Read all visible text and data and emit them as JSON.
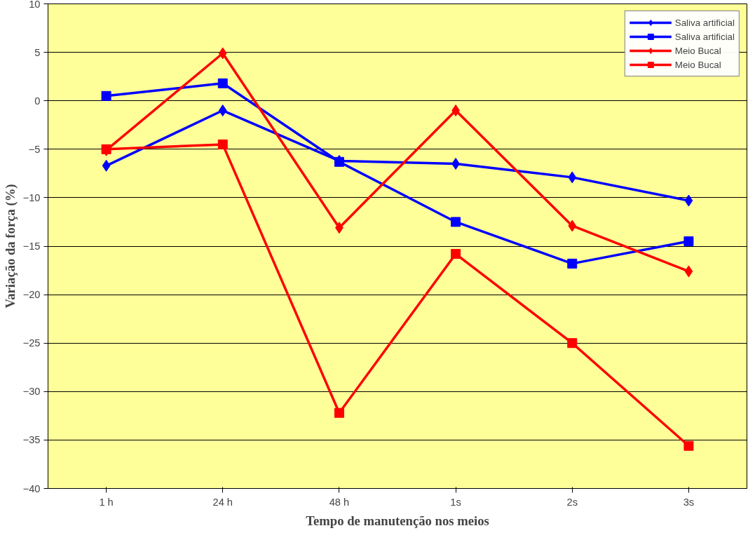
{
  "chart_data": {
    "type": "line",
    "xlabel": "Tempo de manutenção nos meios",
    "ylabel": "Variação da força (%)",
    "categories": [
      "1 h",
      "24 h",
      "48 h",
      "1s",
      "2s",
      "3s"
    ],
    "ylim": [
      -40,
      10
    ],
    "yticks": [
      -40,
      -35,
      -30,
      -25,
      -20,
      -15,
      -10,
      -5,
      0,
      5,
      10
    ],
    "grid": "y",
    "legend": "top right",
    "series": [
      {
        "name": "Saliva artificial",
        "color": "#0000ff",
        "marker": "diamond",
        "values": [
          -6.7,
          -1.0,
          -6.2,
          -6.5,
          -7.9,
          -10.3
        ]
      },
      {
        "name": "Saliva artificial",
        "color": "#0000ff",
        "marker": "square",
        "values": [
          0.5,
          1.8,
          -6.3,
          -12.5,
          -16.8,
          -14.5
        ]
      },
      {
        "name": "Meio Bucal",
        "color": "#ff0000",
        "marker": "diamond",
        "values": [
          -5.1,
          4.9,
          -13.1,
          -1.0,
          -12.9,
          -17.6
        ]
      },
      {
        "name": "Meio Bucal",
        "color": "#ff0000",
        "marker": "square",
        "values": [
          -5.0,
          -4.5,
          -32.2,
          -15.8,
          -25.0,
          -35.6
        ]
      }
    ]
  }
}
